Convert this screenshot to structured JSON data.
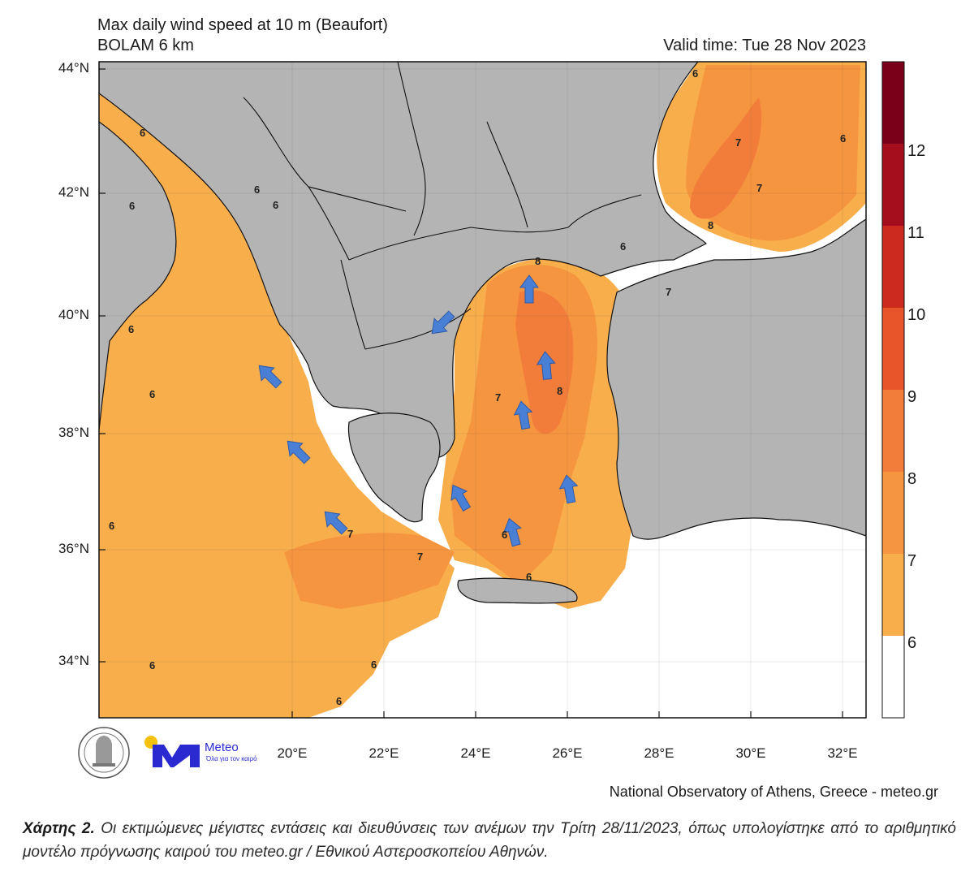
{
  "header": {
    "title_line1": "Max daily wind speed at 10 m (Beaufort)",
    "title_line2": "BOLAM 6 km",
    "valid_time": "Valid time: Tue 28 Nov 2023"
  },
  "axes": {
    "lat_labels": [
      "44°N",
      "42°N",
      "40°N",
      "38°N",
      "36°N",
      "34°N"
    ],
    "lon_labels": [
      "20°E",
      "22°E",
      "24°E",
      "26°E",
      "28°E",
      "30°E",
      "32°E"
    ]
  },
  "colorbar": {
    "labels": [
      "12",
      "11",
      "10",
      "9",
      "8",
      "7",
      "6"
    ],
    "colors": [
      "#7a0019",
      "#a50f1d",
      "#cc2a1e",
      "#e8552a",
      "#f27d3a",
      "#f6953f",
      "#f9ae4c",
      "#ffffff"
    ]
  },
  "contour_labels": [
    {
      "text": "6"
    },
    {
      "text": "6"
    },
    {
      "text": "6"
    },
    {
      "text": "6"
    },
    {
      "text": "6"
    },
    {
      "text": "6"
    },
    {
      "text": "7"
    },
    {
      "text": "7"
    },
    {
      "text": "8"
    },
    {
      "text": "8"
    },
    {
      "text": "8"
    },
    {
      "text": "7"
    },
    {
      "text": "7"
    },
    {
      "text": "7"
    },
    {
      "text": "6"
    },
    {
      "text": "6"
    },
    {
      "text": "6"
    },
    {
      "text": "6"
    },
    {
      "text": "6"
    },
    {
      "text": "7"
    },
    {
      "text": "6"
    },
    {
      "text": "6"
    },
    {
      "text": "6"
    },
    {
      "text": "6"
    }
  ],
  "logos": {
    "meteo_word": "Meteo",
    "meteo_tagline": "Όλα για τον καιρό"
  },
  "credit": "National Observatory of Athens, Greece - meteo.gr",
  "caption": {
    "label": "Χάρτης 2.",
    "text": " Οι εκτιμώμενες μέγιστες εντάσεις και διευθύνσεις των ανέμων την Τρίτη 28/11/2023, όπως υπολογίστηκε από το αριθμητικό μοντέλο πρόγνωσης καιρού του meteo.gr /  Εθνικού Αστεροσκοπείου Αθηνών."
  }
}
